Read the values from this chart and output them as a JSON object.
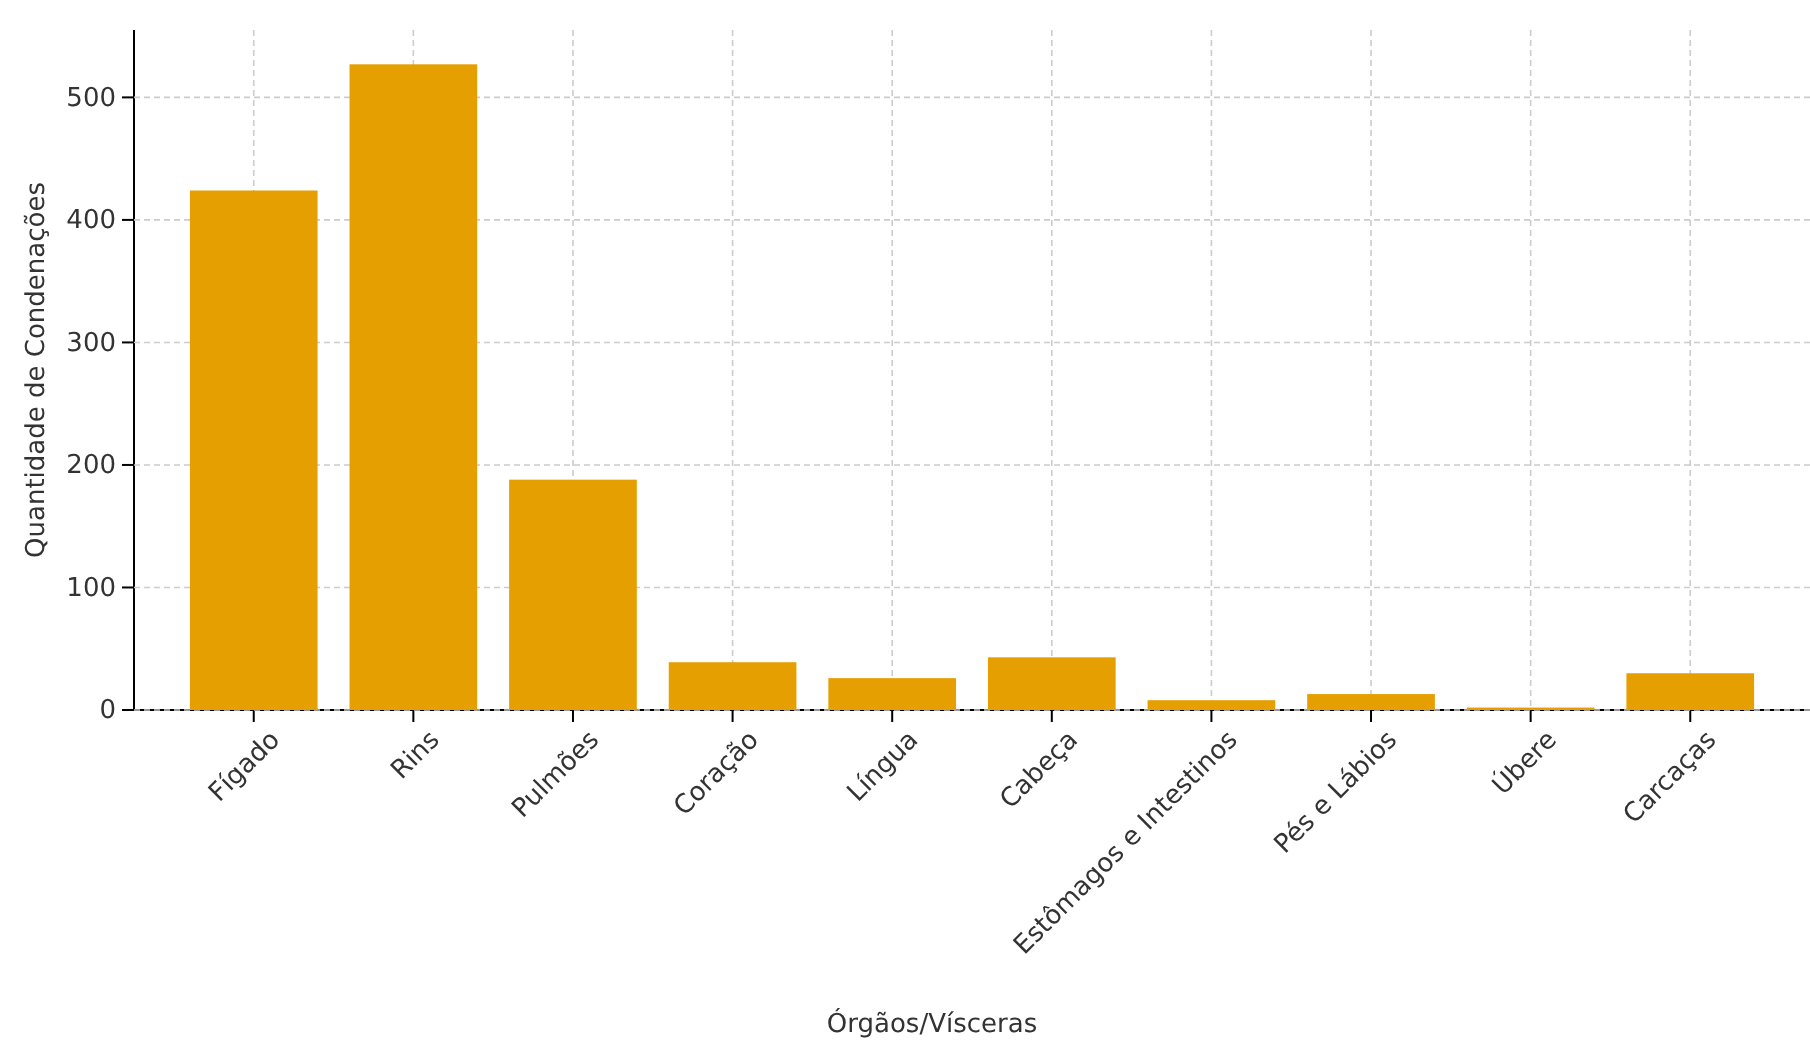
{
  "chart_data": {
    "type": "bar",
    "xlabel": "Órgãos/Vísceras",
    "ylabel": "Quantidade de Condenações",
    "categories": [
      "Fígado",
      "Rins",
      "Pulmões",
      "Coração",
      "Língua",
      "Cabeça",
      "Estômagos e Intestinos",
      "Pés e Lábios",
      "Úbere",
      "Carcaças"
    ],
    "values": [
      424,
      527,
      188,
      39,
      26,
      43,
      8,
      13,
      2,
      30
    ],
    "color": "#e69f00",
    "ylim": [
      0,
      555
    ],
    "yticks": [
      0,
      100,
      200,
      300,
      400,
      500
    ],
    "grid": true
  }
}
